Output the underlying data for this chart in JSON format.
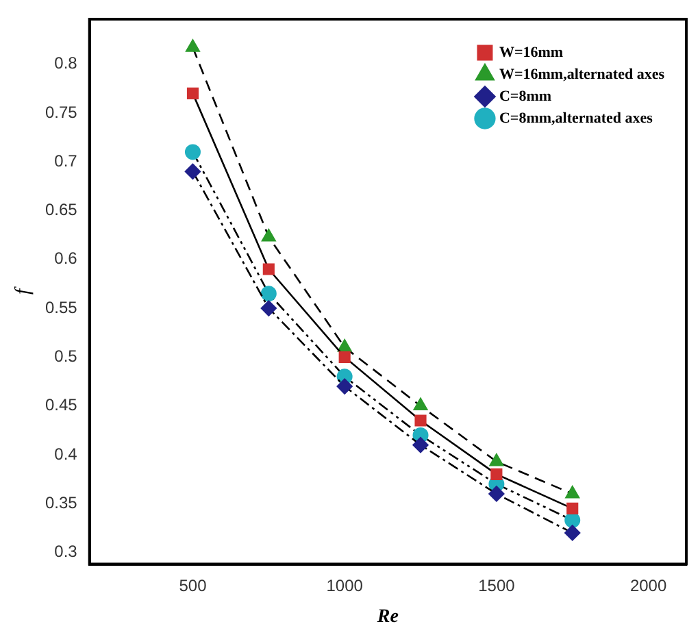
{
  "chart_data": {
    "type": "line",
    "xlabel": "Re",
    "ylabel": "f",
    "x": [
      500,
      750,
      1000,
      1250,
      1500,
      1750
    ],
    "series": [
      {
        "name": "W=16mm",
        "color": "#d03030",
        "marker": "square",
        "line_style": "solid",
        "values": [
          0.77,
          0.59,
          0.5,
          0.435,
          0.38,
          0.345
        ]
      },
      {
        "name": "W=16mm,alternated axes",
        "color": "#2a9a2a",
        "marker": "triangle",
        "line_style": "dashed",
        "values": [
          0.817,
          0.623,
          0.51,
          0.45,
          0.393,
          0.36
        ]
      },
      {
        "name": "C=8mm",
        "color": "#20208a",
        "marker": "diamond",
        "line_style": "dashdot",
        "values": [
          0.69,
          0.55,
          0.47,
          0.41,
          0.36,
          0.32
        ]
      },
      {
        "name": "C=8mm,alternated axes",
        "color": "#20b0c0",
        "marker": "circle",
        "line_style": "dashdotdot",
        "values": [
          0.71,
          0.565,
          0.48,
          0.42,
          0.37,
          0.333
        ]
      }
    ],
    "xlim": [
      160,
      2125
    ],
    "xticks": [
      500,
      1000,
      1500,
      2000
    ],
    "ylim": [
      0.288,
      0.846
    ],
    "yticks": [
      0.3,
      0.35,
      0.4,
      0.45,
      0.5,
      0.55,
      0.6,
      0.65,
      0.7,
      0.75,
      0.8
    ],
    "grid": false,
    "legend": "top right"
  }
}
